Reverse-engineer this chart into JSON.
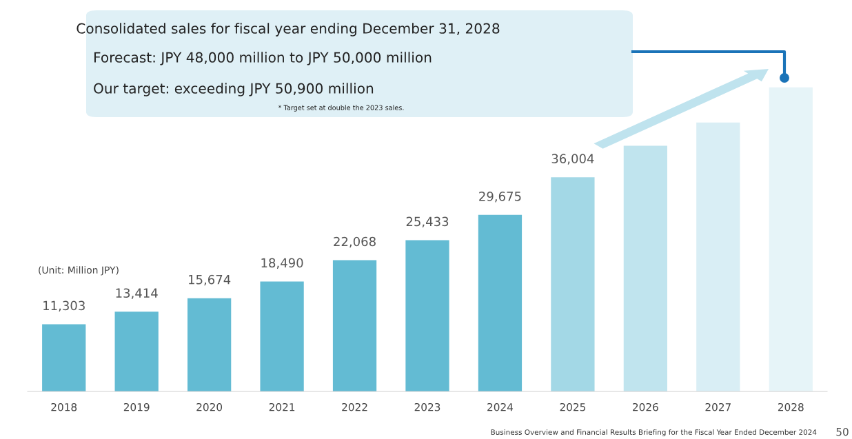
{
  "chart_data": {
    "type": "bar",
    "categories": [
      "2018",
      "2019",
      "2020",
      "2021",
      "2022",
      "2023",
      "2024",
      "2025",
      "2026",
      "2027",
      "2028"
    ],
    "values": [
      11303,
      13414,
      15674,
      18490,
      22068,
      25433,
      29675,
      36004,
      41300,
      45200,
      51100
    ],
    "value_labels": [
      "11,303",
      "13,414",
      "15,674",
      "18,490",
      "22,068",
      "25,433",
      "29,675",
      "36,004",
      null,
      null,
      null
    ],
    "colors": [
      "#63bbd3",
      "#63bbd3",
      "#63bbd3",
      "#63bbd3",
      "#63bbd3",
      "#63bbd3",
      "#63bbd3",
      "#a3d8e6",
      "#c0e4ee",
      "#d9eef5",
      "#e6f4f8"
    ],
    "tick_labels": "x",
    "annotations": [
      "Consolidated sales for fiscal year ending December 31, 2028",
      "Forecast: JPY 48,000 million to JPY 50,000 million",
      "Our target: exceeding JPY 50,900 million",
      "* Target set at double the 2023 sales.",
      "(Unit: Million JPY)",
      "Business Overview and Financial Results Briefing for the Fiscal Year Ended December 2024",
      "50"
    ]
  }
}
